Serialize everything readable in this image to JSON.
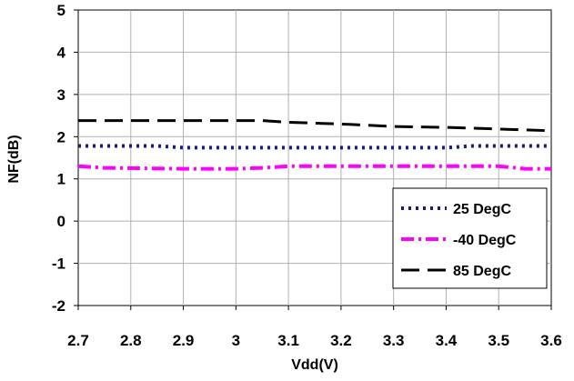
{
  "chart_data": {
    "type": "line",
    "xlabel": "Vdd(V)",
    "ylabel": "NF(dB)",
    "xlim": [
      2.7,
      3.6
    ],
    "ylim": [
      -2,
      5
    ],
    "x_ticks": [
      "2.7",
      "2.8",
      "2.9",
      "3",
      "3.1",
      "3.2",
      "3.3",
      "3.4",
      "3.5",
      "3.6"
    ],
    "y_ticks": [
      "5",
      "4",
      "3",
      "2",
      "1",
      "0",
      "-1",
      "-2"
    ],
    "grid": true,
    "legend_position": "bottom-right",
    "series": [
      {
        "name": "25 DegC",
        "color": "#1a1a7a",
        "style": "dotted",
        "x": [
          2.7,
          2.8,
          2.85,
          2.9,
          3.0,
          3.1,
          3.2,
          3.3,
          3.4,
          3.45,
          3.5,
          3.6
        ],
        "y": [
          1.78,
          1.78,
          1.78,
          1.74,
          1.74,
          1.74,
          1.74,
          1.74,
          1.74,
          1.78,
          1.78,
          1.78
        ]
      },
      {
        "name": "-40 DegC",
        "color": "#ff00ff",
        "style": "dashdot",
        "x": [
          2.7,
          2.75,
          2.9,
          3.0,
          3.05,
          3.1,
          3.2,
          3.3,
          3.4,
          3.5,
          3.55,
          3.6
        ],
        "y": [
          1.3,
          1.26,
          1.24,
          1.24,
          1.26,
          1.3,
          1.3,
          1.3,
          1.3,
          1.3,
          1.24,
          1.24
        ]
      },
      {
        "name": "85 DegC",
        "color": "#000000",
        "style": "dashed",
        "x": [
          2.7,
          2.8,
          2.9,
          3.0,
          3.05,
          3.1,
          3.2,
          3.3,
          3.4,
          3.5,
          3.6
        ],
        "y": [
          2.38,
          2.38,
          2.38,
          2.38,
          2.38,
          2.34,
          2.3,
          2.24,
          2.22,
          2.18,
          2.14
        ]
      }
    ]
  }
}
